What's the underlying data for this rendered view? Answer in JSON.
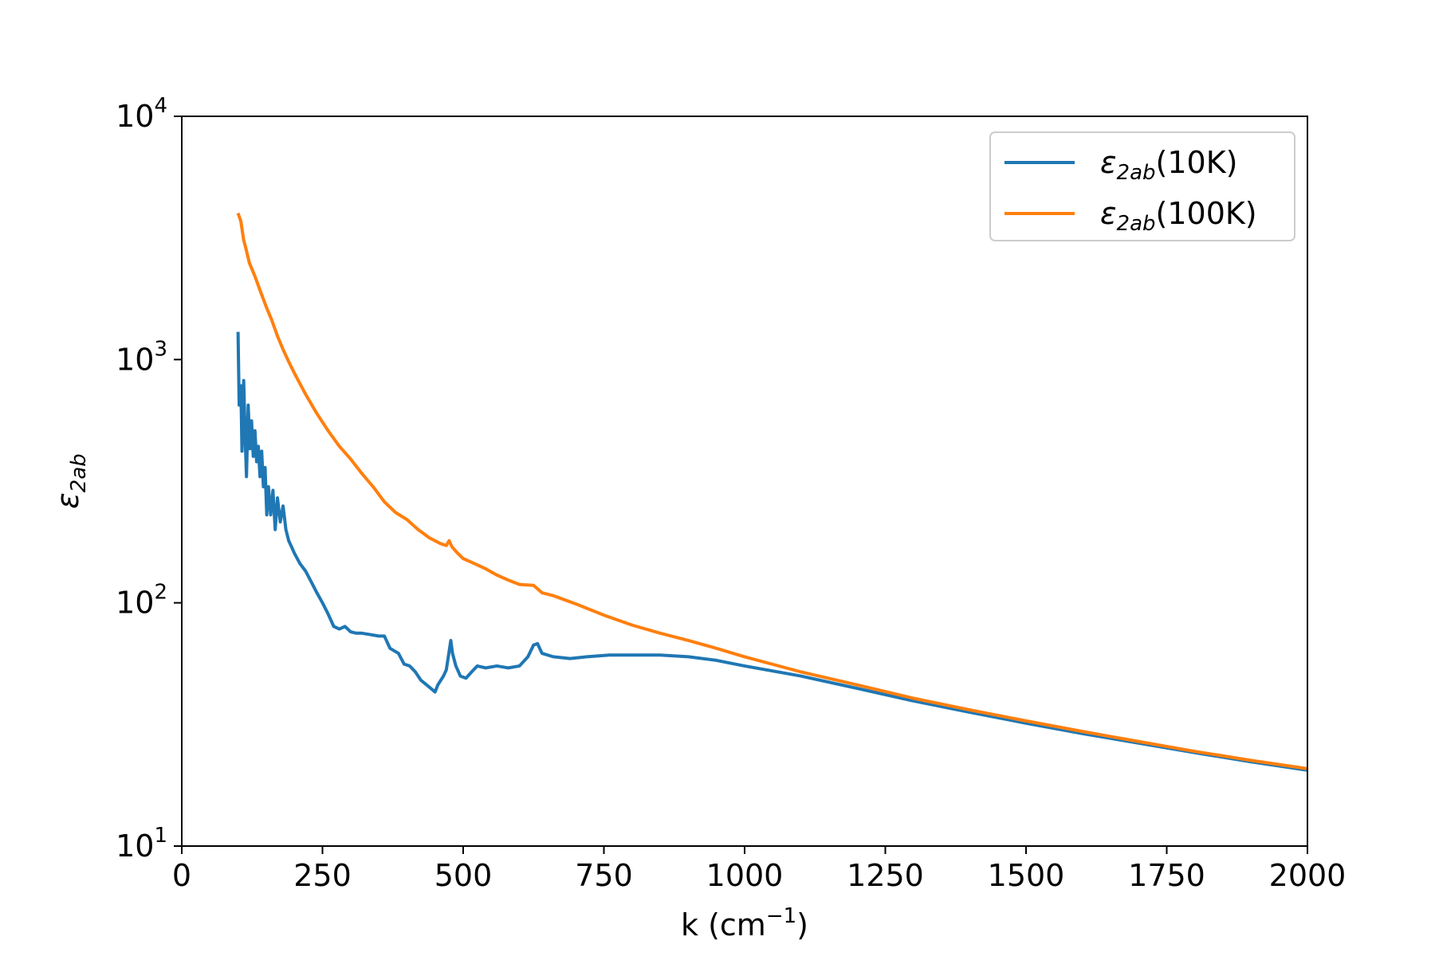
{
  "chart_data": {
    "type": "line",
    "xlabel": {
      "main": "k (cm",
      "sup": "−1",
      "tail": ")"
    },
    "ylabel": {
      "symbol": "ε",
      "sub": "2ab"
    },
    "xlim": [
      0,
      2000
    ],
    "ylim": [
      10,
      10000
    ],
    "yscale": "log",
    "grid": false,
    "legend_position": "top-right",
    "x_ticks": [
      {
        "value": 0,
        "label": "0"
      },
      {
        "value": 250,
        "label": "250"
      },
      {
        "value": 500,
        "label": "500"
      },
      {
        "value": 750,
        "label": "750"
      },
      {
        "value": 1000,
        "label": "1000"
      },
      {
        "value": 1250,
        "label": "1250"
      },
      {
        "value": 1500,
        "label": "1500"
      },
      {
        "value": 1750,
        "label": "1750"
      },
      {
        "value": 2000,
        "label": "2000"
      }
    ],
    "y_ticks": [
      {
        "value": 10,
        "base": "10",
        "exp": "1"
      },
      {
        "value": 100,
        "base": "10",
        "exp": "2"
      },
      {
        "value": 1000,
        "base": "10",
        "exp": "3"
      },
      {
        "value": 10000,
        "base": "10",
        "exp": "4"
      }
    ],
    "series": [
      {
        "name": "ε2ab(10K)",
        "legend": {
          "symbol": "ε",
          "sub": "2ab",
          "tail": "(10K)"
        },
        "color": "#1f77b4",
        "points": [
          [
            100,
            1300
          ],
          [
            102,
            650
          ],
          [
            105,
            780
          ],
          [
            107,
            420
          ],
          [
            110,
            820
          ],
          [
            113,
            450
          ],
          [
            115,
            330
          ],
          [
            118,
            650
          ],
          [
            121,
            430
          ],
          [
            124,
            560
          ],
          [
            127,
            400
          ],
          [
            130,
            510
          ],
          [
            133,
            380
          ],
          [
            136,
            440
          ],
          [
            139,
            330
          ],
          [
            142,
            420
          ],
          [
            145,
            300
          ],
          [
            148,
            360
          ],
          [
            151,
            230
          ],
          [
            154,
            300
          ],
          [
            158,
            230
          ],
          [
            162,
            290
          ],
          [
            166,
            200
          ],
          [
            170,
            270
          ],
          [
            175,
            215
          ],
          [
            180,
            250
          ],
          [
            185,
            200
          ],
          [
            190,
            180
          ],
          [
            195,
            170
          ],
          [
            200,
            160
          ],
          [
            210,
            145
          ],
          [
            220,
            135
          ],
          [
            230,
            122
          ],
          [
            240,
            110
          ],
          [
            250,
            100
          ],
          [
            260,
            90
          ],
          [
            270,
            80
          ],
          [
            280,
            78
          ],
          [
            290,
            80
          ],
          [
            300,
            76
          ],
          [
            310,
            75
          ],
          [
            320,
            75
          ],
          [
            335,
            74
          ],
          [
            350,
            73
          ],
          [
            360,
            73
          ],
          [
            370,
            65
          ],
          [
            385,
            62
          ],
          [
            395,
            56
          ],
          [
            405,
            55
          ],
          [
            415,
            52
          ],
          [
            425,
            48
          ],
          [
            435,
            46
          ],
          [
            445,
            44
          ],
          [
            450,
            43
          ],
          [
            455,
            46
          ],
          [
            465,
            50
          ],
          [
            470,
            53
          ],
          [
            475,
            63
          ],
          [
            478,
            70
          ],
          [
            481,
            62
          ],
          [
            487,
            55
          ],
          [
            495,
            50
          ],
          [
            505,
            49
          ],
          [
            515,
            52
          ],
          [
            525,
            55
          ],
          [
            540,
            54
          ],
          [
            560,
            55
          ],
          [
            580,
            54
          ],
          [
            600,
            55
          ],
          [
            615,
            60
          ],
          [
            625,
            67
          ],
          [
            632,
            68
          ],
          [
            640,
            62
          ],
          [
            660,
            60
          ],
          [
            690,
            59
          ],
          [
            720,
            60
          ],
          [
            760,
            61
          ],
          [
            800,
            61
          ],
          [
            850,
            61
          ],
          [
            900,
            60
          ],
          [
            950,
            58
          ],
          [
            1000,
            55
          ],
          [
            1100,
            50
          ],
          [
            1200,
            44.5
          ],
          [
            1300,
            39.5
          ],
          [
            1400,
            35.5
          ],
          [
            1500,
            32
          ],
          [
            1600,
            29
          ],
          [
            1700,
            26.5
          ],
          [
            1800,
            24.2
          ],
          [
            1900,
            22.2
          ],
          [
            2000,
            20.5
          ]
        ]
      },
      {
        "name": "ε2ab(100K)",
        "legend": {
          "symbol": "ε",
          "sub": "2ab",
          "tail": "(100K)"
        },
        "color": "#ff7f0e",
        "points": [
          [
            100,
            4000
          ],
          [
            105,
            3700
          ],
          [
            110,
            3100
          ],
          [
            115,
            2800
          ],
          [
            120,
            2500
          ],
          [
            130,
            2200
          ],
          [
            140,
            1900
          ],
          [
            150,
            1650
          ],
          [
            160,
            1450
          ],
          [
            170,
            1250
          ],
          [
            180,
            1100
          ],
          [
            190,
            980
          ],
          [
            200,
            880
          ],
          [
            220,
            720
          ],
          [
            240,
            600
          ],
          [
            260,
            510
          ],
          [
            280,
            440
          ],
          [
            300,
            390
          ],
          [
            320,
            340
          ],
          [
            340,
            300
          ],
          [
            360,
            260
          ],
          [
            380,
            235
          ],
          [
            400,
            220
          ],
          [
            420,
            200
          ],
          [
            440,
            185
          ],
          [
            460,
            175
          ],
          [
            470,
            172
          ],
          [
            475,
            180
          ],
          [
            480,
            170
          ],
          [
            490,
            160
          ],
          [
            500,
            152
          ],
          [
            520,
            145
          ],
          [
            540,
            138
          ],
          [
            560,
            130
          ],
          [
            580,
            124
          ],
          [
            600,
            119
          ],
          [
            625,
            118
          ],
          [
            640,
            110
          ],
          [
            660,
            107
          ],
          [
            700,
            99
          ],
          [
            750,
            89
          ],
          [
            800,
            81
          ],
          [
            850,
            75
          ],
          [
            900,
            70
          ],
          [
            950,
            65
          ],
          [
            1000,
            60
          ],
          [
            1100,
            52
          ],
          [
            1200,
            46
          ],
          [
            1300,
            40.5
          ],
          [
            1400,
            36.3
          ],
          [
            1500,
            32.7
          ],
          [
            1600,
            29.6
          ],
          [
            1700,
            26.9
          ],
          [
            1800,
            24.5
          ],
          [
            1900,
            22.5
          ],
          [
            2000,
            20.8
          ]
        ]
      }
    ]
  }
}
